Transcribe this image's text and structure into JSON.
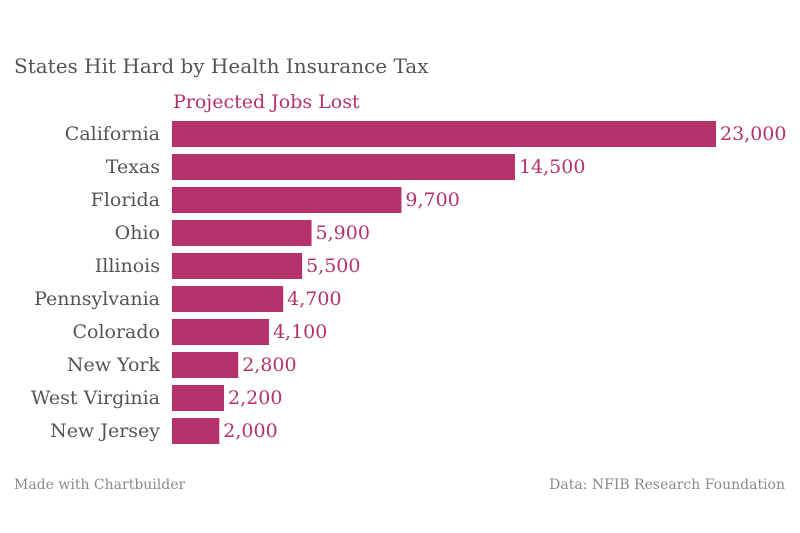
{
  "chart_data": {
    "type": "bar",
    "orientation": "horizontal",
    "title": "States Hit Hard by Health Insurance Tax",
    "series": [
      {
        "name": "Projected Jobs Lost",
        "values": [
          23000,
          14500,
          9700,
          5900,
          5500,
          4700,
          4100,
          2800,
          2200,
          2000
        ],
        "value_labels": [
          "23,000",
          "14,500",
          "9,700",
          "5,900",
          "5,500",
          "4,700",
          "4,100",
          "2,800",
          "2,200",
          "2,000"
        ]
      }
    ],
    "categories": [
      "California",
      "Texas",
      "Florida",
      "Ohio",
      "Illinois",
      "Pennsylvania",
      "Colorado",
      "New York",
      "West Virginia",
      "New Jersey"
    ],
    "xlim": [
      0,
      23000
    ],
    "grid": false,
    "bar_color": "#b5316b"
  },
  "footer": {
    "credit": "Made with Chartbuilder",
    "source": "Data: NFIB Research Foundation"
  }
}
